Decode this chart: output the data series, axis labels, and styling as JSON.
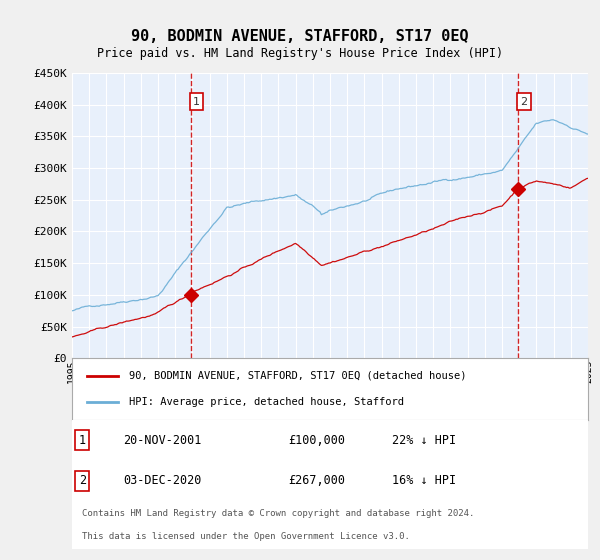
{
  "title": "90, BODMIN AVENUE, STAFFORD, ST17 0EQ",
  "subtitle": "Price paid vs. HM Land Registry's House Price Index (HPI)",
  "bg_color": "#dce9f5",
  "plot_bg_color": "#e8f0fb",
  "hpi_color": "#6baed6",
  "price_color": "#cc0000",
  "marker_color": "#cc0000",
  "vline_color": "#cc0000",
  "grid_color": "#ffffff",
  "start_year": 1995,
  "end_year": 2025,
  "ylim": [
    0,
    450000
  ],
  "yticks": [
    0,
    50000,
    100000,
    150000,
    200000,
    250000,
    300000,
    350000,
    400000,
    450000
  ],
  "transaction1_date": "20-NOV-2001",
  "transaction1_year": 2001.89,
  "transaction1_price": 100000,
  "transaction1_label": "1",
  "transaction2_date": "03-DEC-2020",
  "transaction2_year": 2020.92,
  "transaction2_price": 267000,
  "transaction2_label": "2",
  "legend_line1": "90, BODMIN AVENUE, STAFFORD, ST17 0EQ (detached house)",
  "legend_line2": "HPI: Average price, detached house, Stafford",
  "footer1": "Contains HM Land Registry data © Crown copyright and database right 2024.",
  "footer2": "This data is licensed under the Open Government Licence v3.0.",
  "table_row1": [
    "1",
    "20-NOV-2001",
    "£100,000",
    "22% ↓ HPI"
  ],
  "table_row2": [
    "2",
    "03-DEC-2020",
    "£267,000",
    "16% ↓ HPI"
  ]
}
